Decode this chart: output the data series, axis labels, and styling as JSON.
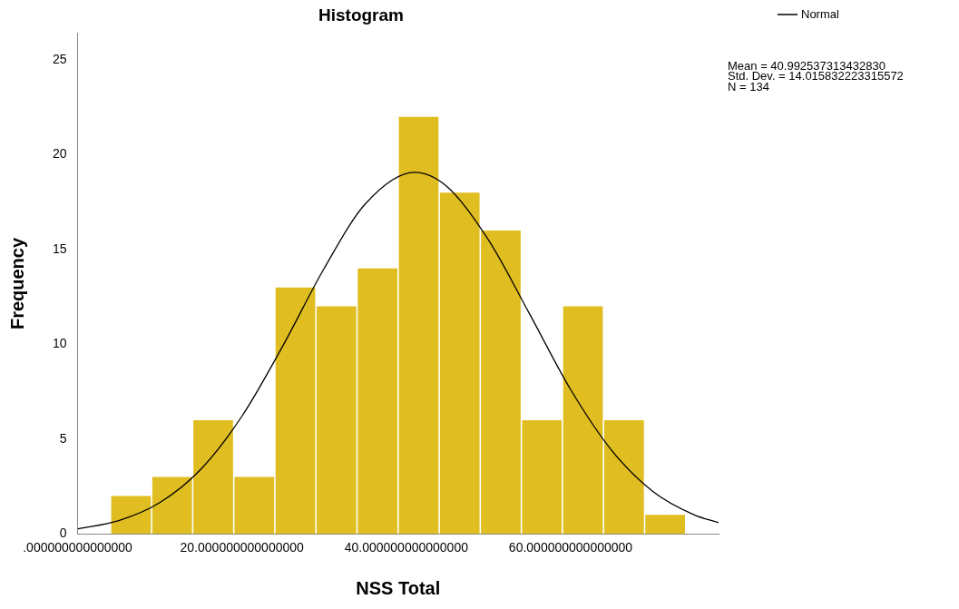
{
  "chart_data": {
    "type": "histogram",
    "title": "Histogram",
    "xlabel": "NSS Total",
    "ylabel": "Frequency",
    "bins": [
      4,
      9,
      14,
      19,
      24,
      29,
      34,
      39,
      44,
      49,
      54,
      59,
      64,
      69,
      74
    ],
    "values": [
      2,
      3,
      6,
      3,
      13,
      12,
      14,
      22,
      18,
      16,
      6,
      12,
      6,
      1
    ],
    "color": "#e0bd20",
    "series": [
      {
        "name": "Normal",
        "type": "line",
        "color": "#000000",
        "x": [
          0,
          5,
          10,
          15,
          20,
          25,
          30,
          35,
          41,
          45,
          50,
          55,
          60,
          65,
          70,
          75,
          78
        ],
        "values": [
          0.26,
          0.7,
          1.65,
          3.41,
          6.21,
          9.94,
          14.0,
          17.4,
          19.07,
          18.3,
          15.5,
          11.6,
          7.61,
          4.4,
          2.24,
          1.01,
          0.59
        ]
      }
    ],
    "xlim": [
      0,
      78
    ],
    "xticks": [
      {
        "value": 0,
        "label": ".000000000000000"
      },
      {
        "value": 20,
        "label": "20.000000000000000"
      },
      {
        "value": 40,
        "label": "40.000000000000000"
      },
      {
        "value": 60,
        "label": "60.000000000000000"
      }
    ],
    "ylim": [
      0,
      26.4
    ],
    "yticks": [
      0,
      5,
      10,
      15,
      20,
      25
    ],
    "legend": "top right",
    "annotations": [
      "Mean = 40.992537313432830",
      "Std. Dev. = 14.015832223315572",
      "N = 134"
    ]
  }
}
